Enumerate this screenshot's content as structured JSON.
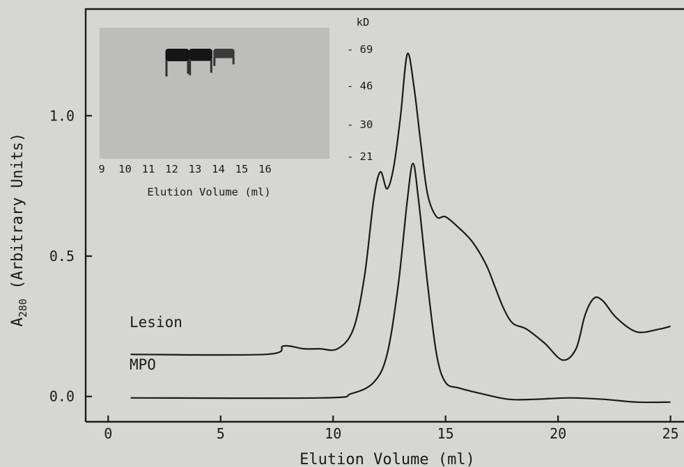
{
  "chart_data": {
    "type": "line",
    "xlabel": "Elution Volume (ml)",
    "ylabel": "A280 (Arbitrary Units)",
    "ylabel_main": "A",
    "ylabel_sub": "280",
    "ylabel_rest": " (Arbitrary Units)",
    "xlim": [
      -1,
      25.6
    ],
    "ylim": [
      -0.09,
      1.38
    ],
    "x_ticks": [
      0,
      5,
      10,
      15,
      20,
      25
    ],
    "x_tick_labels": [
      "0",
      "5",
      "10",
      "15",
      "20",
      "25"
    ],
    "y_ticks": [
      0.0,
      0.5,
      1.0
    ],
    "y_tick_labels": [
      "0.0",
      "0.5",
      "1.0"
    ],
    "grid": false,
    "series": [
      {
        "name": "Lesion",
        "x": [
          1,
          7,
          7.8,
          8.7,
          9.4,
          10.2,
          10.9,
          11.4,
          11.8,
          12.1,
          12.4,
          12.7,
          13.0,
          13.3,
          13.6,
          13.9,
          14.2,
          14.6,
          15.0,
          15.6,
          16.2,
          16.8,
          17.2,
          17.6,
          18.0,
          18.6,
          19.4,
          20.2,
          20.8,
          21.2,
          21.6,
          22.0,
          22.6,
          23.5,
          24.5,
          25.0
        ],
        "y": [
          0.15,
          0.15,
          0.18,
          0.17,
          0.17,
          0.17,
          0.24,
          0.43,
          0.7,
          0.8,
          0.74,
          0.82,
          1.0,
          1.22,
          1.1,
          0.9,
          0.72,
          0.64,
          0.64,
          0.6,
          0.55,
          0.47,
          0.39,
          0.31,
          0.26,
          0.24,
          0.19,
          0.13,
          0.17,
          0.29,
          0.35,
          0.34,
          0.28,
          0.23,
          0.24,
          0.25
        ]
      },
      {
        "name": "MPO",
        "x": [
          1,
          9.5,
          10.8,
          11.8,
          12.4,
          12.9,
          13.3,
          13.55,
          13.8,
          14.2,
          14.6,
          15.0,
          15.6,
          16.6,
          17.8,
          19.0,
          20.5,
          22.0,
          23.5,
          25.0
        ],
        "y": [
          -0.005,
          -0.005,
          0.01,
          0.05,
          0.15,
          0.4,
          0.7,
          0.83,
          0.7,
          0.4,
          0.15,
          0.05,
          0.03,
          0.01,
          -0.01,
          -0.01,
          -0.005,
          -0.01,
          -0.02,
          -0.02
        ]
      }
    ],
    "annotations": [
      "Lesion",
      "MPO"
    ],
    "inset": {
      "description_type": "gel",
      "lane_labels": [
        "9",
        "10",
        "11",
        "12",
        "13",
        "14",
        "15",
        "16"
      ],
      "band_intensity": [
        0.0,
        0.0,
        0.0,
        1.0,
        0.95,
        0.55,
        0.0,
        0.0
      ],
      "marker_unit": "kD",
      "markers": [
        {
          "label": "- 69",
          "kd": 69
        },
        {
          "label": "- 46",
          "kd": 46
        },
        {
          "label": "- 30",
          "kd": 30
        },
        {
          "label": "- 21",
          "kd": 21
        }
      ],
      "xlabel": "Elution Volume (ml)"
    }
  }
}
